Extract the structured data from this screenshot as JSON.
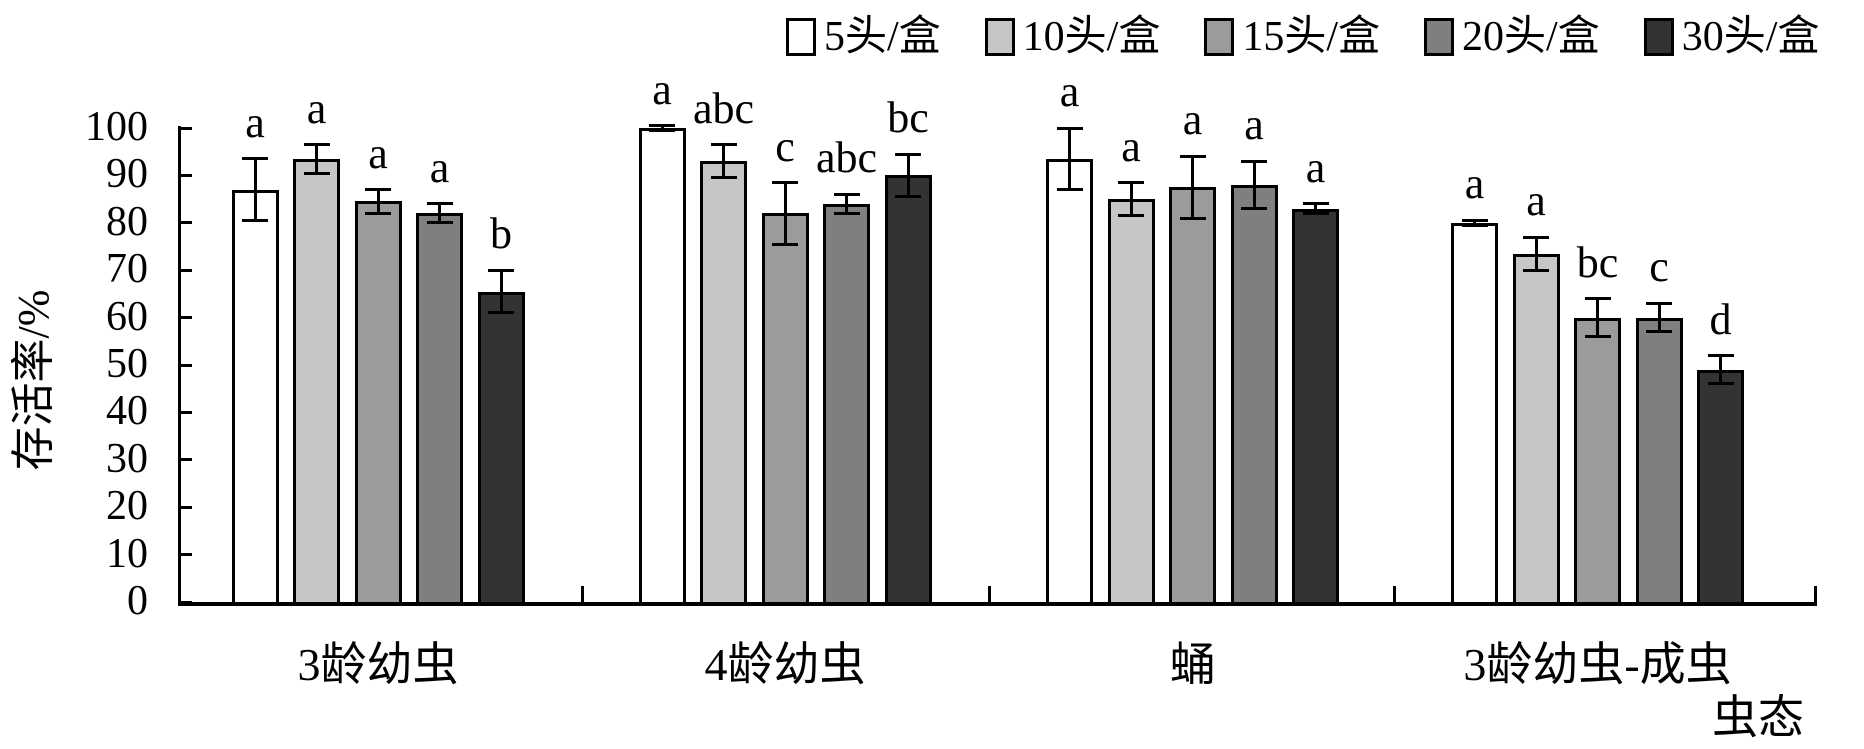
{
  "chart_data": {
    "type": "bar",
    "title": "",
    "ylabel": "存活率/%",
    "xlabel": "虫态",
    "ylim": [
      0,
      100
    ],
    "yticks": [
      0,
      10,
      20,
      30,
      40,
      50,
      60,
      70,
      80,
      90,
      100
    ],
    "grid": false,
    "legend_position": "top",
    "categories": [
      "3龄幼虫",
      "4龄幼虫",
      "蛹",
      "3龄幼虫-成虫"
    ],
    "series": [
      {
        "name": "5头/盒",
        "color": "#ffffff",
        "values": [
          87,
          100,
          93.5,
          80
        ],
        "errors": [
          6.5,
          0.5,
          6.5,
          0.5
        ],
        "sig_letters": [
          "a",
          "a",
          "a",
          "a"
        ]
      },
      {
        "name": "10头/盒",
        "color": "#c6c6c6",
        "values": [
          93.5,
          93,
          85,
          73.5
        ],
        "errors": [
          3,
          3.5,
          3.5,
          3.5
        ],
        "sig_letters": [
          "a",
          "abc",
          "a",
          "a"
        ]
      },
      {
        "name": "15头/盒",
        "color": "#9b9b9b",
        "values": [
          84.5,
          82,
          87.5,
          60
        ],
        "errors": [
          2.5,
          6.5,
          6.5,
          4
        ],
        "sig_letters": [
          "a",
          "c",
          "a",
          "bc"
        ]
      },
      {
        "name": "20头/盒",
        "color": "#7f7f7f",
        "values": [
          82,
          84,
          88,
          60
        ],
        "errors": [
          2,
          2,
          5,
          3
        ],
        "sig_letters": [
          "a",
          "abc",
          "a",
          "c"
        ]
      },
      {
        "name": "30头/盒",
        "color": "#333333",
        "values": [
          65.5,
          90,
          83,
          49
        ],
        "errors": [
          4.5,
          4.5,
          1,
          3
        ],
        "sig_letters": [
          "b",
          "bc",
          "a",
          "d"
        ]
      }
    ]
  }
}
